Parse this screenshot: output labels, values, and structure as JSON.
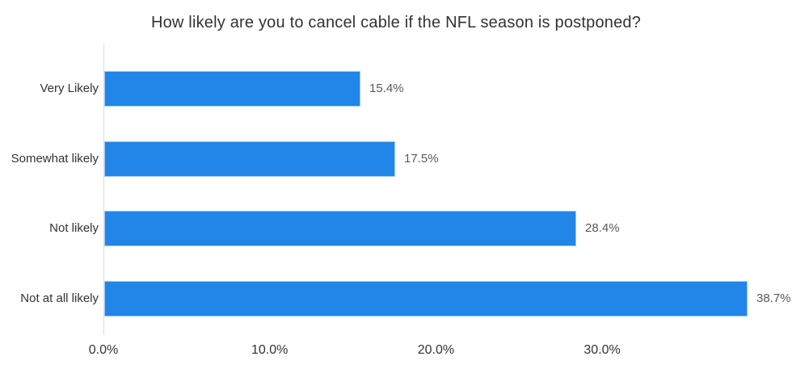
{
  "chart_data": {
    "type": "bar",
    "orientation": "horizontal",
    "title": "How likely are you to cancel cable if the NFL season is postponed?",
    "categories": [
      "Very Likely",
      "Somewhat likely",
      "Not likely",
      "Not at all likely"
    ],
    "values": [
      15.4,
      17.5,
      28.4,
      38.7
    ],
    "value_labels": [
      "15.4%",
      "17.5%",
      "28.4%",
      "38.7%"
    ],
    "x_ticks": [
      "0.0%",
      "10.0%",
      "20.0%",
      "30.0%"
    ],
    "x_tick_values": [
      0,
      10,
      20,
      30
    ],
    "xlim": [
      0,
      40
    ],
    "xlabel": "",
    "ylabel": "",
    "grid": false,
    "legend": "none",
    "colors": {
      "bar_fill": "#2285e8",
      "bar_border": "#9ec9f1",
      "title_text": "#333333",
      "category_text": "#333333",
      "value_text": "#595959",
      "tick_text": "#333333",
      "axis_line": "#dddddd"
    }
  }
}
